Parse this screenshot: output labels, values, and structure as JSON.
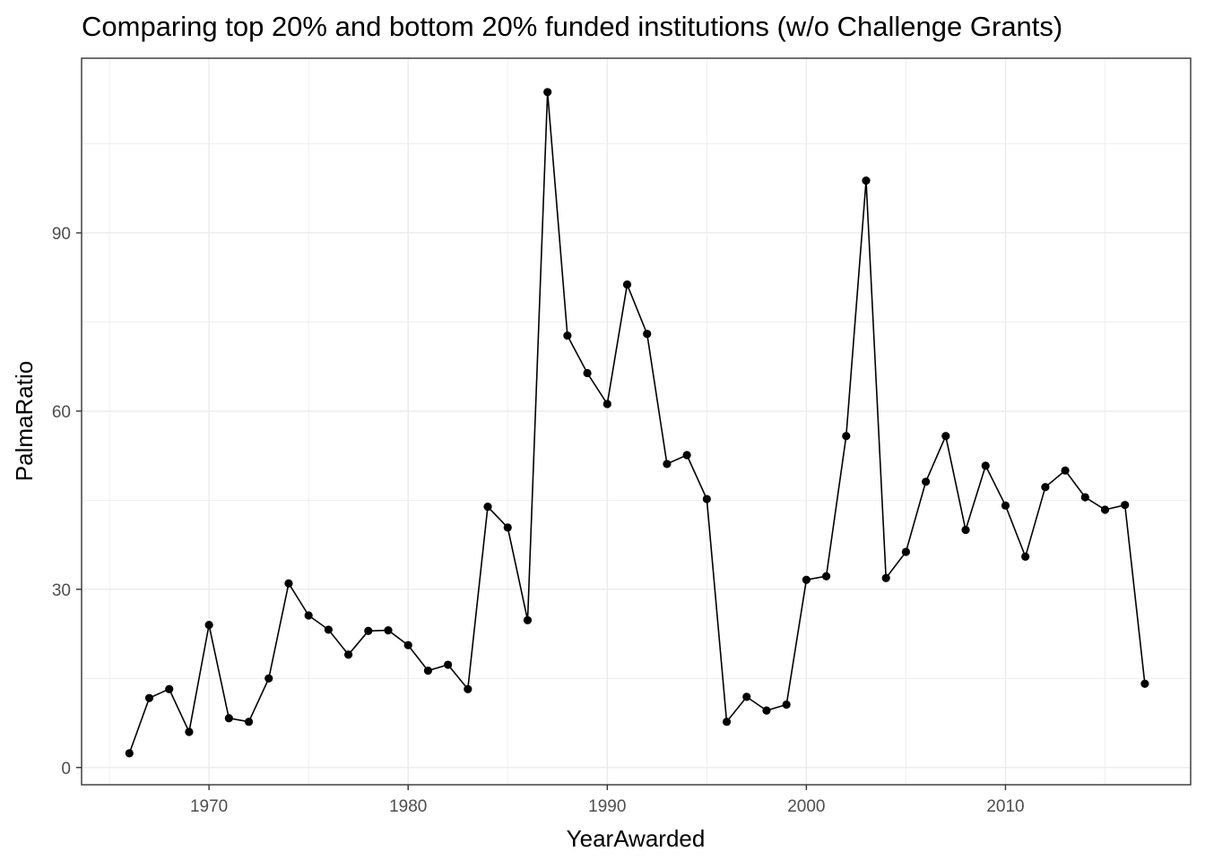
{
  "chart_data": {
    "type": "line",
    "title": "Comparing top 20% and bottom 20% funded institutions (w/o Challenge Grants)",
    "xlabel": "YearAwarded",
    "ylabel": "PalmaRatio",
    "xlim": [
      1963.6,
      1969.6
    ],
    "x_range": [
      1963.6,
      2019.3
    ],
    "ylim": [
      -2.9,
      119.4
    ],
    "x_ticks": [
      1970,
      1980,
      1990,
      2000,
      2010
    ],
    "x_tick_labels": [
      "1970",
      "1980",
      "1990",
      "2000",
      "2010"
    ],
    "y_ticks": [
      0,
      30,
      60,
      90
    ],
    "y_tick_labels": [
      "0",
      "30",
      "60",
      "90"
    ],
    "grid": true,
    "legend": "none",
    "series": [
      {
        "color": "#000000",
        "x": [
          1966,
          1967,
          1968,
          1969,
          1970,
          1971,
          1972,
          1973,
          1974,
          1975,
          1976,
          1977,
          1978,
          1979,
          1980,
          1981,
          1982,
          1983,
          1984,
          1985,
          1986,
          1987,
          1988,
          1989,
          1990,
          1991,
          1992,
          1993,
          1994,
          1995,
          1996,
          1997,
          1998,
          1999,
          2000,
          2001,
          2002,
          2003,
          2004,
          2005,
          2006,
          2007,
          2008,
          2009,
          2010,
          2011,
          2012,
          2013,
          2014,
          2015,
          2016,
          2017
        ],
        "y": [
          2.4,
          11.7,
          13.2,
          6.0,
          24.0,
          8.3,
          7.7,
          15.0,
          31.0,
          25.6,
          23.2,
          19.0,
          23.0,
          23.1,
          20.6,
          16.3,
          17.3,
          13.2,
          43.9,
          40.4,
          24.8,
          113.7,
          72.7,
          66.4,
          61.2,
          81.3,
          73.0,
          51.1,
          52.6,
          45.2,
          7.7,
          11.9,
          9.6,
          10.6,
          31.6,
          32.2,
          55.8,
          98.8,
          31.9,
          36.3,
          48.1,
          55.8,
          40.0,
          50.8,
          44.1,
          35.5,
          47.2,
          50.0,
          45.5,
          43.4,
          44.2,
          14.1
        ]
      }
    ]
  }
}
